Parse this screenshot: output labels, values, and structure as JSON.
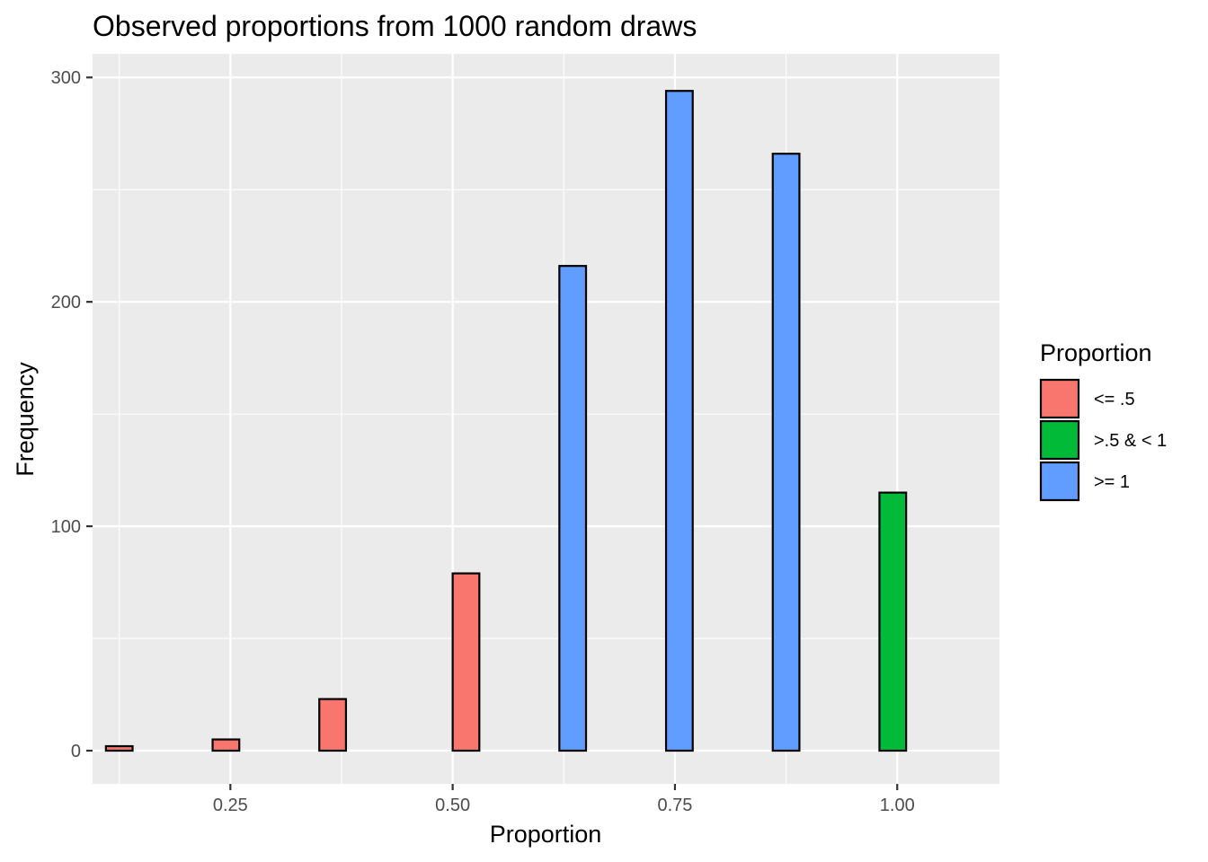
{
  "chart_data": {
    "type": "bar",
    "title": "Observed proportions from 1000 random draws",
    "xlabel": "Proportion",
    "ylabel": "Frequency",
    "xlim": [
      0.095,
      1.115
    ],
    "ylim": [
      -14.8,
      310.5
    ],
    "x_ticks": [
      {
        "value": 0.25,
        "label": "0.25"
      },
      {
        "value": 0.5,
        "label": "0.50"
      },
      {
        "value": 0.75,
        "label": "0.75"
      },
      {
        "value": 1.0,
        "label": "1.00"
      }
    ],
    "y_ticks": [
      {
        "value": 0,
        "label": "0"
      },
      {
        "value": 100,
        "label": "100"
      },
      {
        "value": 200,
        "label": "200"
      },
      {
        "value": 300,
        "label": "300"
      }
    ],
    "grid": true,
    "legend": {
      "title": "Proportion",
      "placement": "right",
      "entries": [
        {
          "label": "<= .5",
          "color": "#F8766D"
        },
        {
          "label": ">.5 & < 1",
          "color": "#00BA38"
        },
        {
          "label": ">= 1",
          "color": "#619CFF"
        }
      ]
    },
    "bin_width": 0.03,
    "bars": [
      {
        "x": 0.125,
        "y": 2,
        "group": 0
      },
      {
        "x": 0.155,
        "y": 0,
        "group": 0
      },
      {
        "x": 0.185,
        "y": 0,
        "group": 0
      },
      {
        "x": 0.215,
        "y": 0,
        "group": 0
      },
      {
        "x": 0.245,
        "y": 5,
        "group": 0
      },
      {
        "x": 0.275,
        "y": 0,
        "group": 0
      },
      {
        "x": 0.305,
        "y": 0,
        "group": 0
      },
      {
        "x": 0.335,
        "y": 0,
        "group": 0
      },
      {
        "x": 0.365,
        "y": 23,
        "group": 0
      },
      {
        "x": 0.395,
        "y": 0,
        "group": 0
      },
      {
        "x": 0.425,
        "y": 0,
        "group": 0
      },
      {
        "x": 0.455,
        "y": 0,
        "group": 0
      },
      {
        "x": 0.485,
        "y": 0,
        "group": 0
      },
      {
        "x": 0.515,
        "y": 79,
        "group": 0
      },
      {
        "x": 0.545,
        "y": 0,
        "group": 0
      },
      {
        "x": 0.575,
        "y": 0,
        "group": 0
      },
      {
        "x": 0.605,
        "y": 0,
        "group": 0
      },
      {
        "x": 0.635,
        "y": 216,
        "group": 2
      },
      {
        "x": 0.665,
        "y": 0,
        "group": 2
      },
      {
        "x": 0.695,
        "y": 0,
        "group": 2
      },
      {
        "x": 0.725,
        "y": 0,
        "group": 2
      },
      {
        "x": 0.755,
        "y": 294,
        "group": 2
      },
      {
        "x": 0.785,
        "y": 0,
        "group": 2
      },
      {
        "x": 0.815,
        "y": 0,
        "group": 2
      },
      {
        "x": 0.845,
        "y": 0,
        "group": 2
      },
      {
        "x": 0.875,
        "y": 266,
        "group": 2
      },
      {
        "x": 0.905,
        "y": 0,
        "group": 1
      },
      {
        "x": 0.935,
        "y": 0,
        "group": 1
      },
      {
        "x": 0.965,
        "y": 0,
        "group": 1
      },
      {
        "x": 0.995,
        "y": 115,
        "group": 1
      }
    ]
  }
}
